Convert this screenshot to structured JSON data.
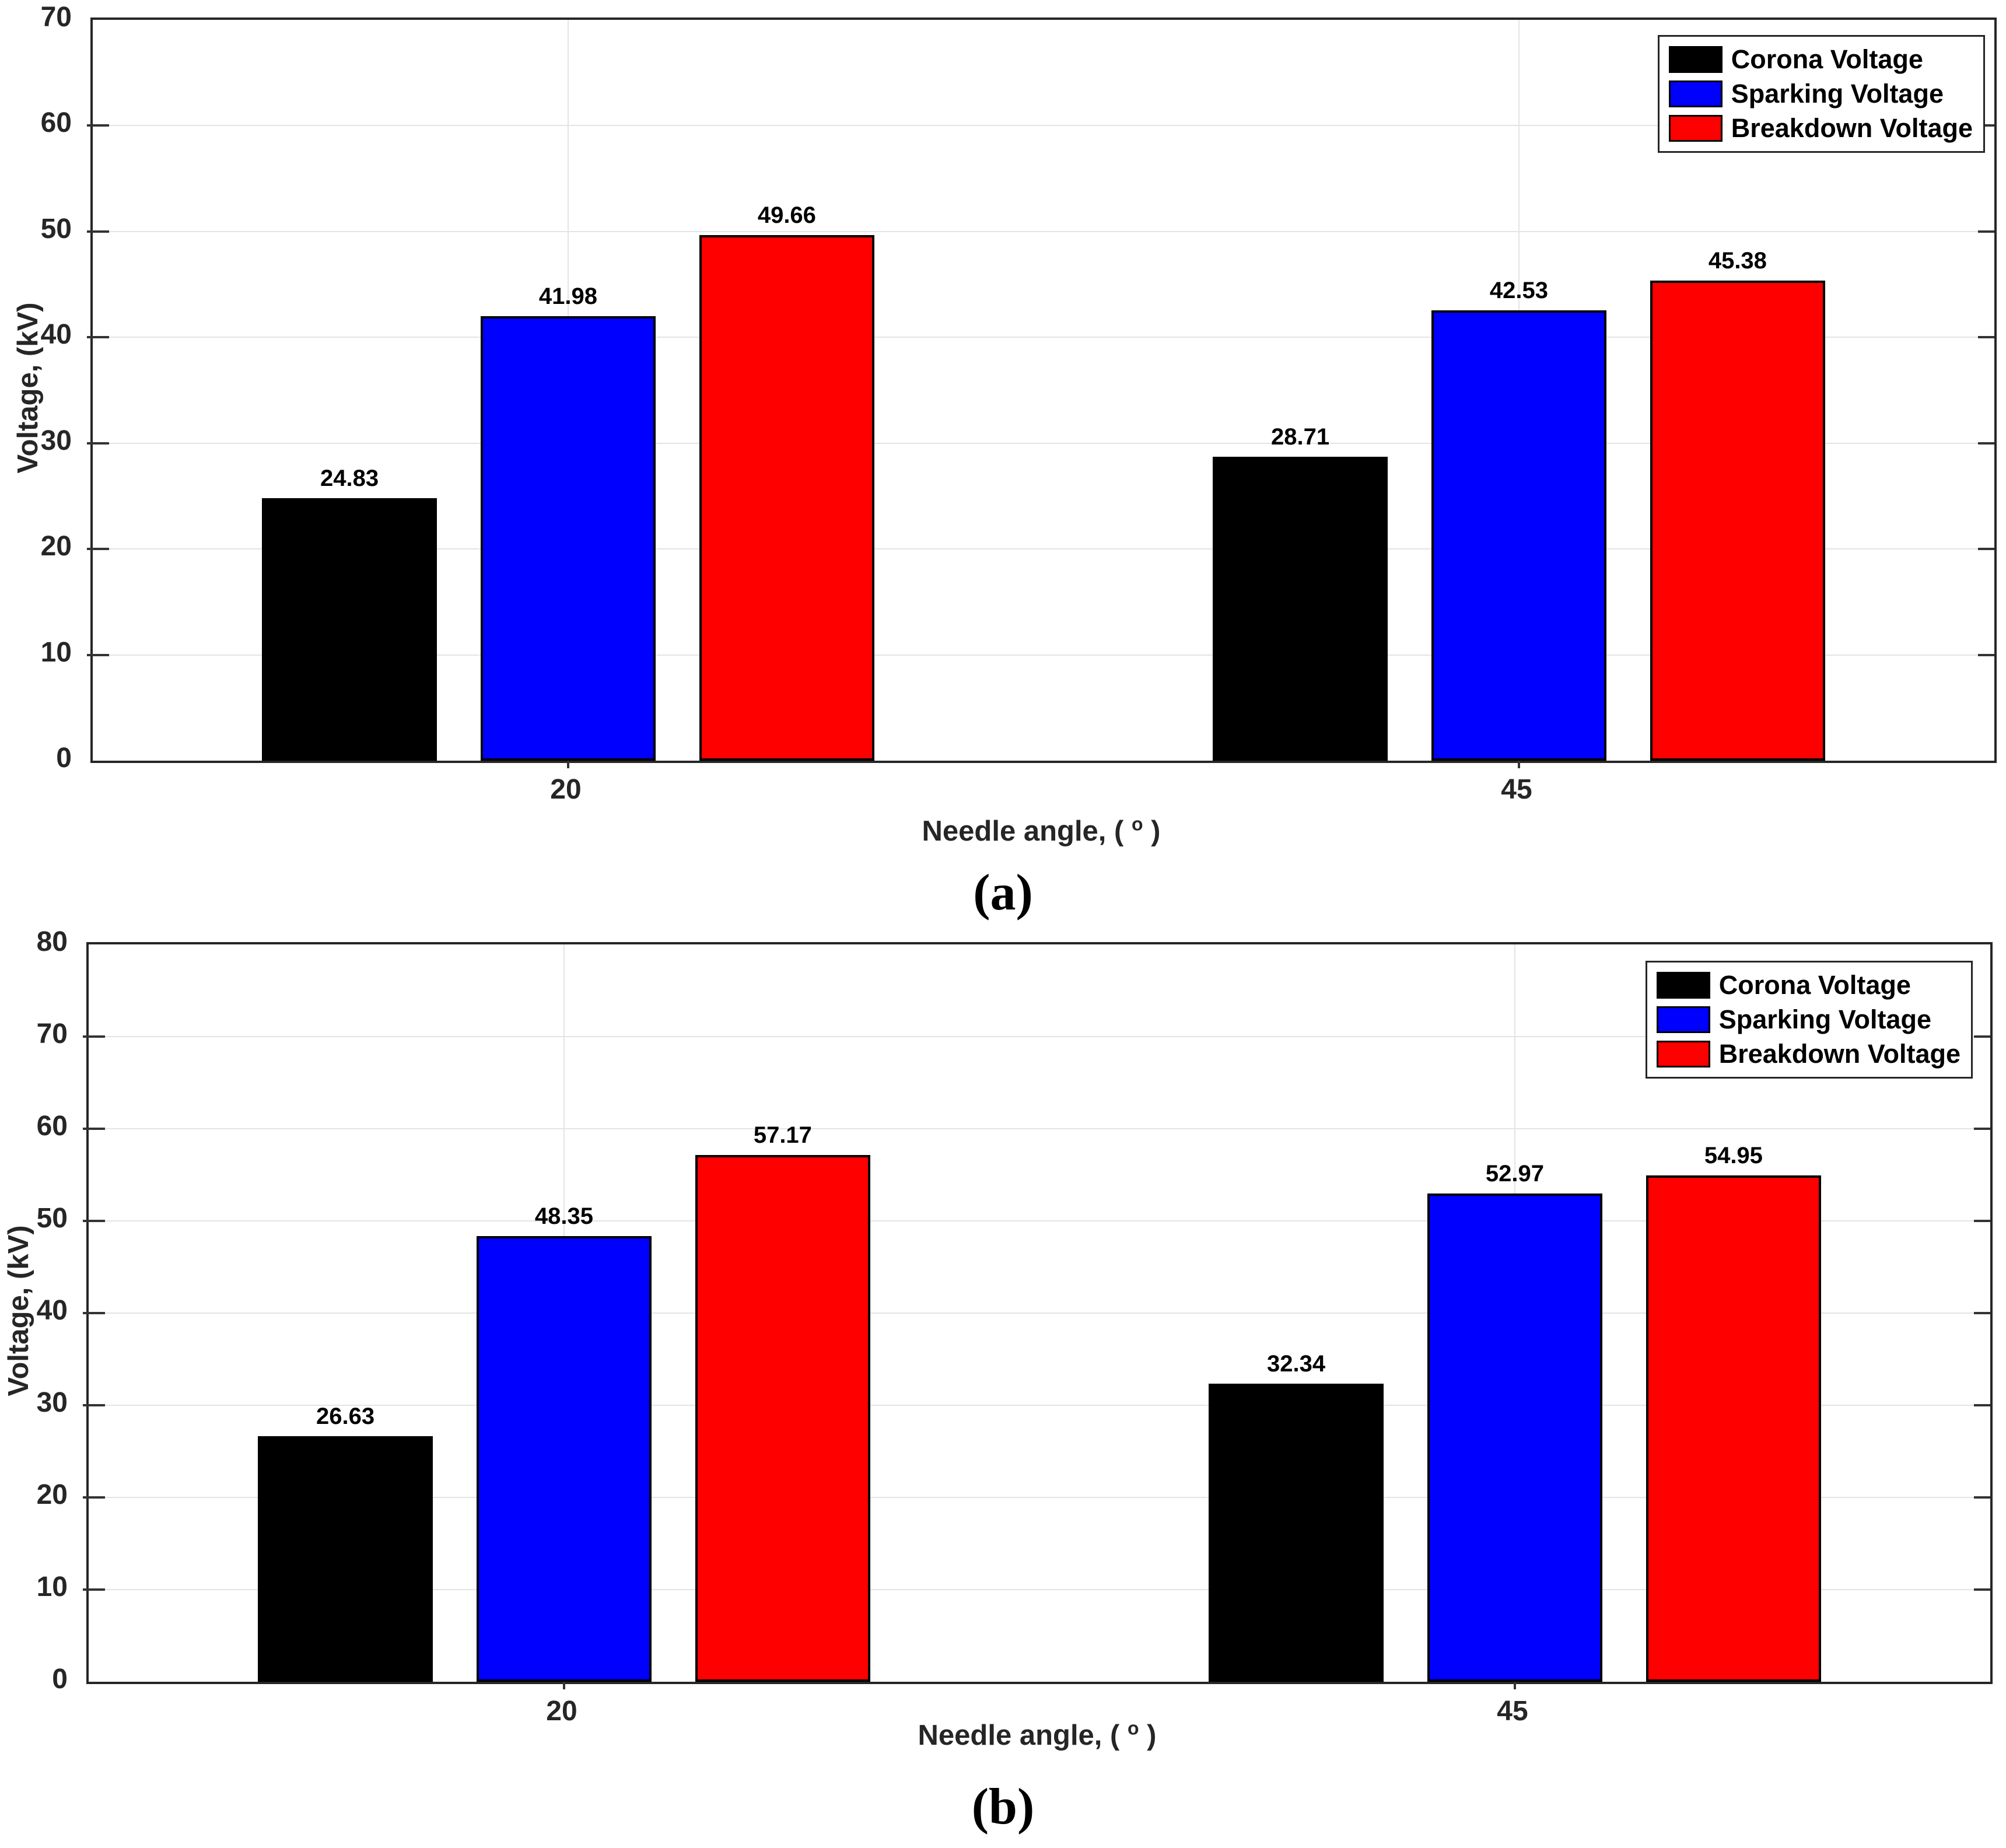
{
  "figure": {
    "background": "#ffffff"
  },
  "chart_data": [
    {
      "panel": "a",
      "type": "bar",
      "title": "",
      "caption": "(a)",
      "xlabel": "Needle angle, ( ° )",
      "xlabel_parts": {
        "pre": "Needle angle, ( ",
        "sup": "o",
        "post": " )"
      },
      "ylabel": "Voltage, (kV)",
      "categories": [
        "20",
        "45"
      ],
      "series": [
        {
          "name": "Corona Voltage",
          "color": "#000000",
          "values": [
            24.83,
            28.71
          ]
        },
        {
          "name": "Sparking Voltage",
          "color": "#0000ff",
          "values": [
            41.98,
            42.53
          ]
        },
        {
          "name": "Breakdown Voltage",
          "color": "#ff0000",
          "values": [
            49.66,
            45.38
          ]
        }
      ],
      "ylim": [
        0,
        70
      ],
      "yticks": [
        0,
        10,
        20,
        30,
        40,
        50,
        60,
        70
      ],
      "grid": true,
      "legend_position": "top-right",
      "bar_value_labels": true
    },
    {
      "panel": "b",
      "type": "bar",
      "title": "",
      "caption": "(b)",
      "xlabel": "Needle angle, ( ° )",
      "xlabel_parts": {
        "pre": "Needle angle, ( ",
        "sup": "o",
        "post": " )"
      },
      "ylabel": "Voltage, (kV)",
      "categories": [
        "20",
        "45"
      ],
      "series": [
        {
          "name": "Corona Voltage",
          "color": "#000000",
          "values": [
            26.63,
            32.34
          ]
        },
        {
          "name": "Sparking Voltage",
          "color": "#0000ff",
          "values": [
            48.35,
            52.97
          ]
        },
        {
          "name": "Breakdown Voltage",
          "color": "#ff0000",
          "values": [
            57.17,
            54.95
          ]
        }
      ],
      "ylim": [
        0,
        80
      ],
      "yticks": [
        0,
        10,
        20,
        30,
        40,
        50,
        60,
        70,
        80
      ],
      "grid": true,
      "legend_position": "top-right",
      "bar_value_labels": true
    }
  ]
}
